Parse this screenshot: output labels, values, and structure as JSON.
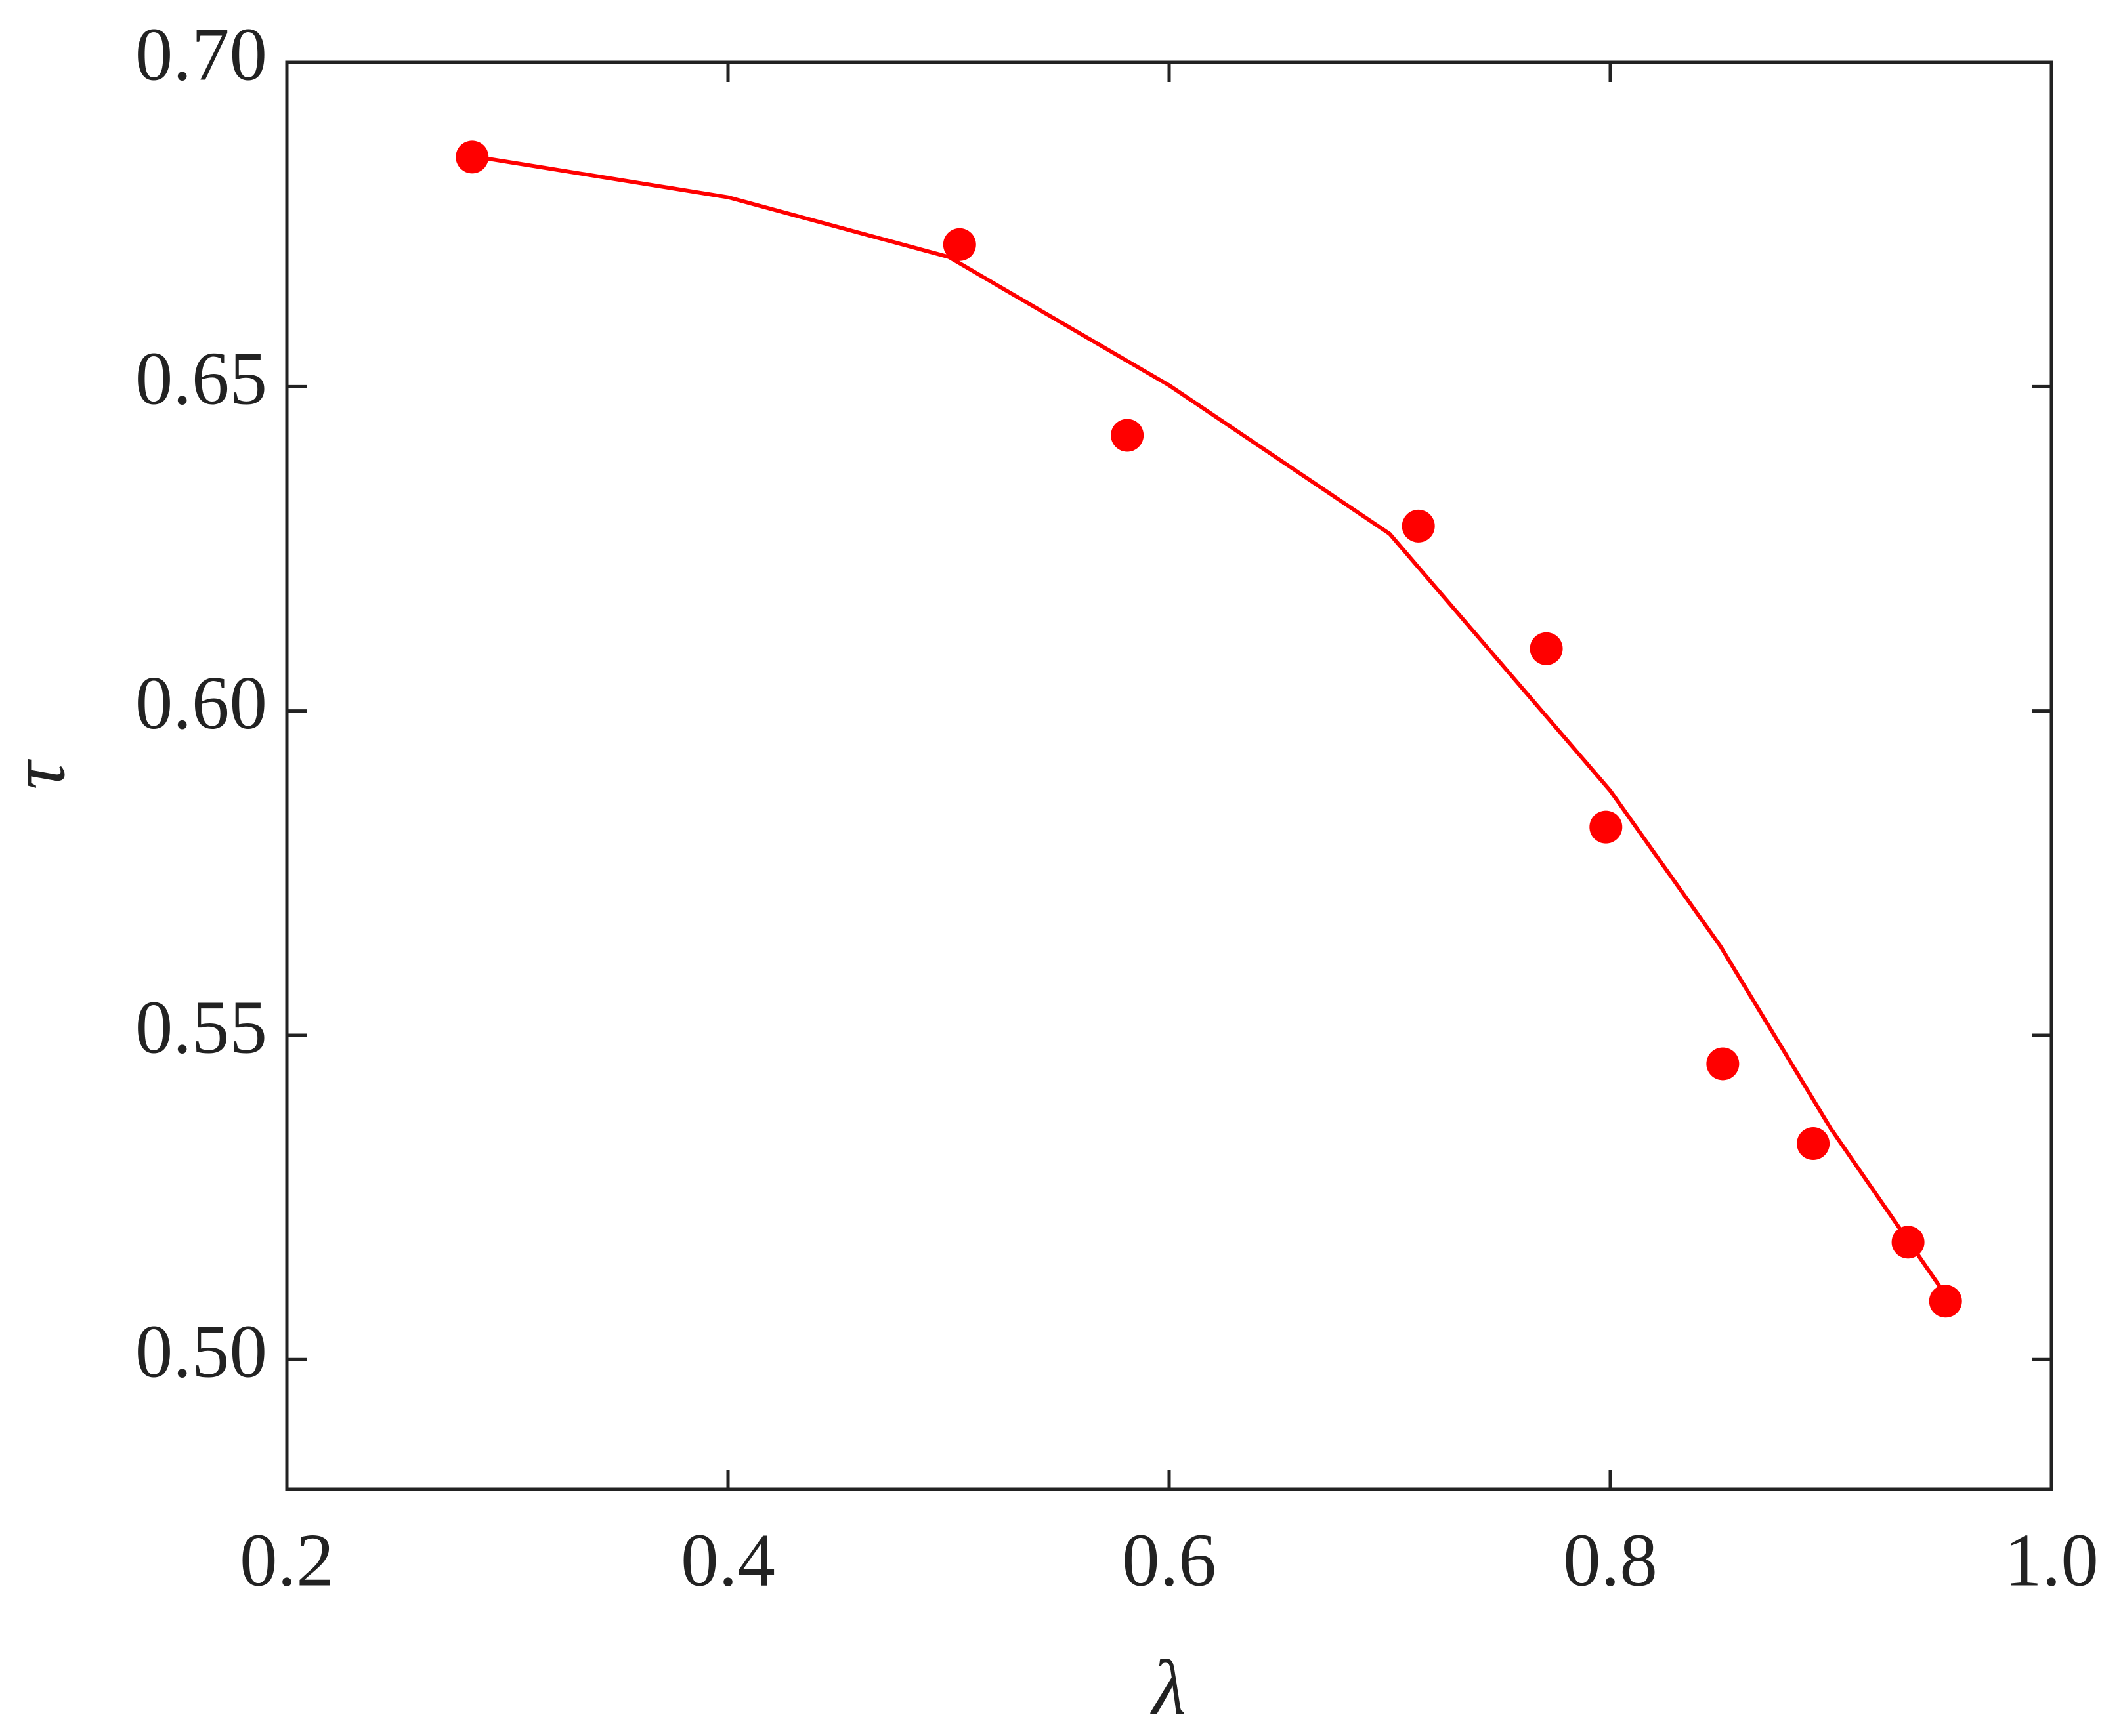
{
  "chart_data": {
    "type": "scatter",
    "xlabel": "λ",
    "ylabel": "τ",
    "xlim": [
      0.2,
      1.0
    ],
    "xticks": [
      0.2,
      0.4,
      0.6,
      0.8,
      {
        "value": 1,
        "label": "1.0"
      }
    ],
    "ylim": [
      0.48,
      0.7
    ],
    "yticks": [
      {
        "value": 0.5,
        "label": "0.50"
      },
      0.55,
      {
        "value": 0.6,
        "label": "0.60"
      },
      0.65,
      {
        "value": 0.7,
        "label": "0.70"
      }
    ],
    "grid": false,
    "series": [
      {
        "mode": "markers",
        "color": "#ff0000",
        "x": [
          0.284,
          0.505,
          0.581,
          0.713,
          0.771,
          0.798,
          0.851,
          0.892,
          0.935,
          0.952
        ],
        "values": [
          0.6854,
          0.6719,
          0.6425,
          0.6285,
          0.6096,
          0.5821,
          0.5456,
          0.5333,
          0.5181,
          0.509
        ]
      },
      {
        "mode": "line",
        "color": "#ff0000",
        "x": [
          0.29,
          0.4,
          0.5,
          0.6,
          0.7,
          0.8,
          0.85,
          0.9,
          0.955
        ],
        "values": [
          0.6852,
          0.6792,
          0.67,
          0.6502,
          0.6273,
          0.5877,
          0.5637,
          0.5356,
          0.5085
        ]
      }
    ]
  }
}
